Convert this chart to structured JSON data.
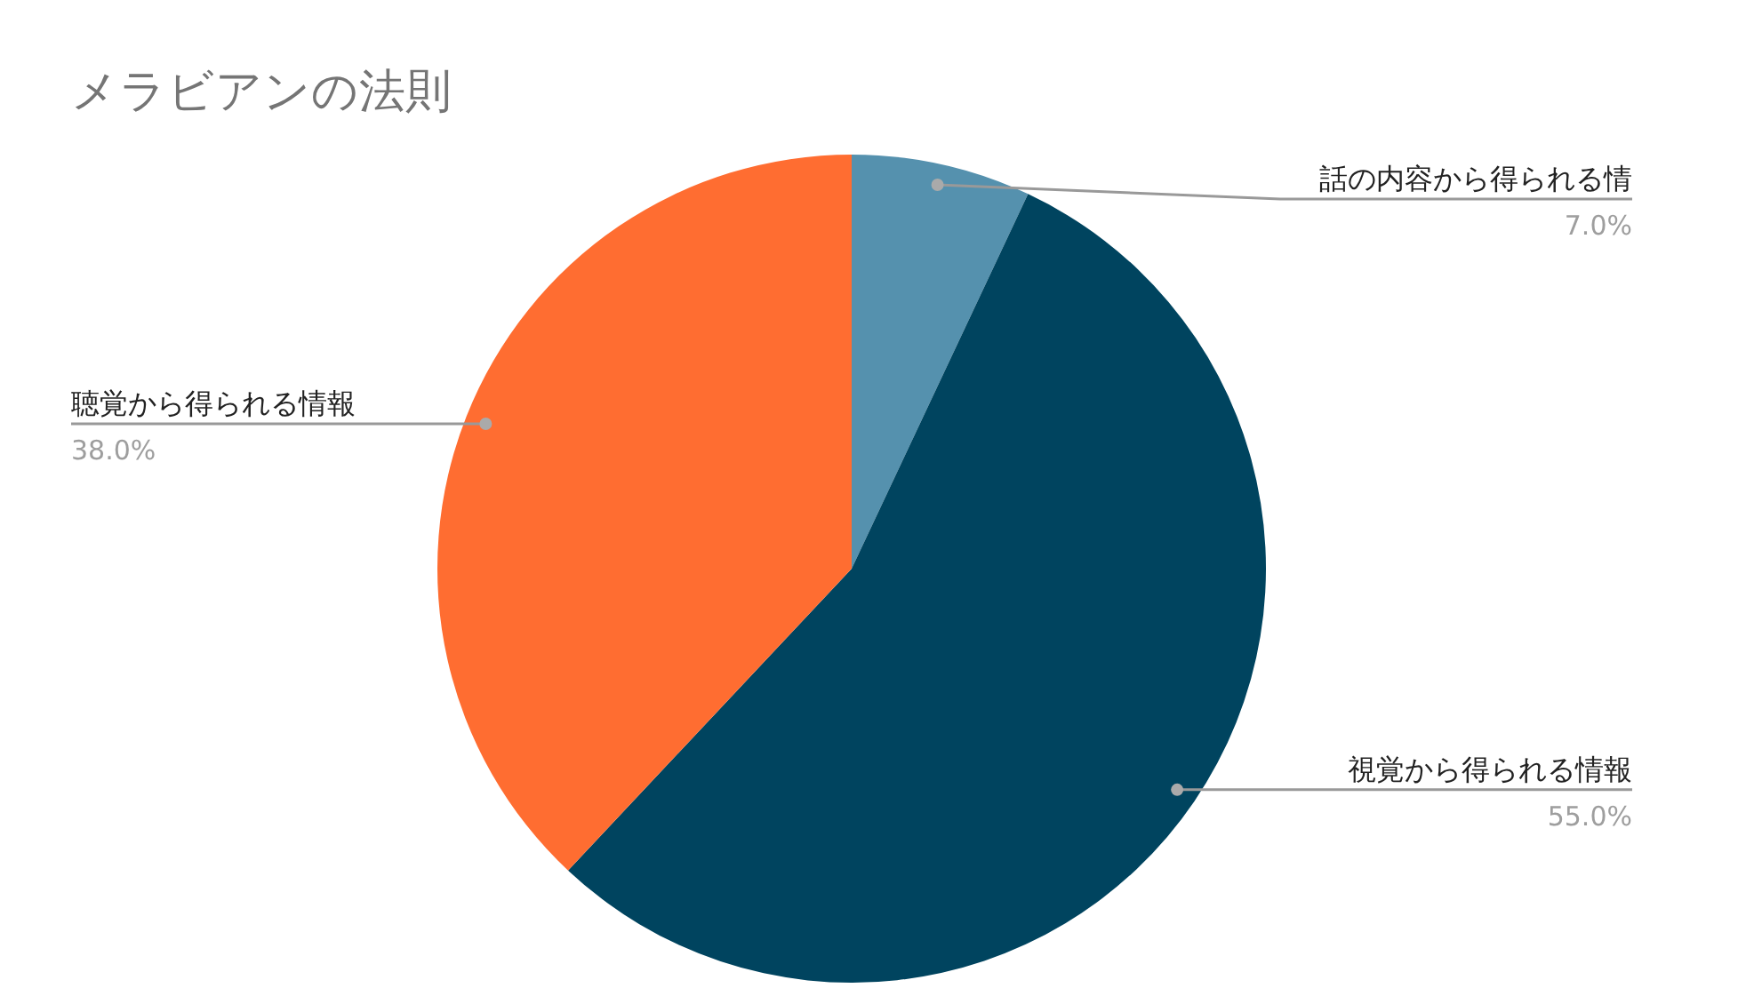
{
  "chart_data": {
    "type": "pie",
    "title": "メラビアンの法則",
    "categories": [
      "話の内容から得られる情",
      "視覚から得られる情報",
      "聴覚から得られる情報"
    ],
    "values": [
      7,
      55,
      38
    ],
    "value_labels": [
      "7.0%",
      "55.0%",
      "38.0%"
    ],
    "colors": [
      "#5591ae",
      "#00445f",
      "#ff6d31"
    ]
  }
}
